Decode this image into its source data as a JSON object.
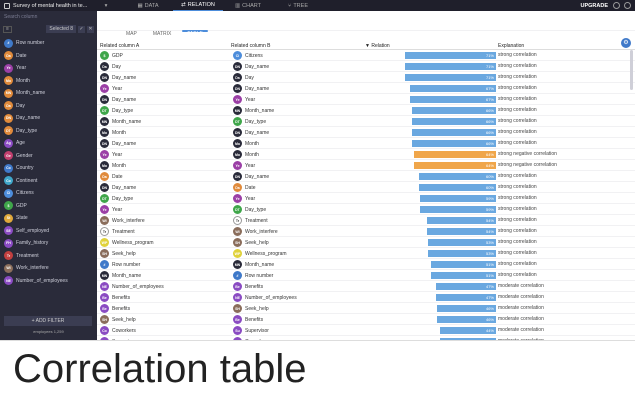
{
  "topbar": {
    "title": "Survey of mental health in te...",
    "tabs": [
      {
        "label": "DATA",
        "icon": "grid-icon"
      },
      {
        "label": "RELATION",
        "icon": "relation-icon"
      },
      {
        "label": "CHART",
        "icon": "chart-icon"
      },
      {
        "label": "TREE",
        "icon": "tree-icon"
      }
    ],
    "active_tab": 1,
    "upgrade": "UPGRADE",
    "menu_icon": "▾"
  },
  "sidebar": {
    "search_placeholder": "Search column",
    "selected": "Selected",
    "selected_count": "8",
    "variables": [
      {
        "label": "Row number",
        "abbr": "#",
        "color": "#3f79c9"
      },
      {
        "label": "Date",
        "abbr": "Da",
        "color": "#e08a3b"
      },
      {
        "label": "Year",
        "abbr": "Ye",
        "color": "#9b3fa6"
      },
      {
        "label": "Month",
        "abbr": "Mo",
        "color": "#e08a3b"
      },
      {
        "label": "Month_name",
        "abbr": "MN",
        "color": "#e08a3b"
      },
      {
        "label": "Day",
        "abbr": "Da",
        "color": "#e08a3b"
      },
      {
        "label": "Day_name",
        "abbr": "DN",
        "color": "#e08a3b"
      },
      {
        "label": "Day_type",
        "abbr": "DT",
        "color": "#e08a3b"
      },
      {
        "label": "Age",
        "abbr": "Ag",
        "color": "#8a4bc2"
      },
      {
        "label": "Gender",
        "abbr": "Ge",
        "color": "#c23f6e"
      },
      {
        "label": "Country",
        "abbr": "Co",
        "color": "#3f79c9"
      },
      {
        "label": "Continent",
        "abbr": "Co",
        "color": "#3fa6c9"
      },
      {
        "label": "Citizens",
        "abbr": "Ci",
        "color": "#4d8ddb"
      },
      {
        "label": "GDP",
        "abbr": "$",
        "color": "#3fa64a"
      },
      {
        "label": "State",
        "abbr": "St",
        "color": "#e0a83b"
      },
      {
        "label": "Self_employed",
        "abbr": "SE",
        "color": "#8a4bc2"
      },
      {
        "label": "Family_history",
        "abbr": "FH",
        "color": "#8a4bc2"
      },
      {
        "label": "Treatment",
        "abbr": "Tr",
        "color": "#c23f3f"
      },
      {
        "label": "Work_interfere",
        "abbr": "WI",
        "color": "#8a6d5b"
      },
      {
        "label": "Number_of_employees",
        "abbr": "NE",
        "color": "#8a4bc2"
      }
    ],
    "add_filter": "+ ADD FILTER",
    "count_text": "employees 1,259"
  },
  "subtabs": [
    "MAP",
    "MATRIX",
    "TABLE"
  ],
  "active_subtab": 2,
  "table": {
    "headers": [
      "Related column A",
      "Related column B",
      "▼ Relation",
      "Explanation"
    ],
    "rows": [
      {
        "a": "GDP",
        "aa": "$",
        "ac": "#3fa64a",
        "b": "Citizens",
        "ba": "Ci",
        "bc": "#4d8ddb",
        "value": 0.71,
        "label": "71%",
        "neg": false,
        "expl": "strong correlation"
      },
      {
        "a": "Day",
        "aa": "Da",
        "ac": "#2a2b3a",
        "b": "Day_name",
        "ba": "DN",
        "bc": "#2a2b3a",
        "value": 0.71,
        "label": "71%",
        "neg": false,
        "expl": "strong correlation"
      },
      {
        "a": "Day_name",
        "aa": "DN",
        "ac": "#2a2b3a",
        "b": "Day",
        "ba": "Da",
        "bc": "#2a2b3a",
        "value": 0.71,
        "label": "71%",
        "neg": false,
        "expl": "strong correlation"
      },
      {
        "a": "Year",
        "aa": "Ye",
        "ac": "#9b3fa6",
        "b": "Day_name",
        "ba": "DN",
        "bc": "#2a2b3a",
        "value": 0.67,
        "label": "67%",
        "neg": false,
        "expl": "strong correlation"
      },
      {
        "a": "Day_name",
        "aa": "DN",
        "ac": "#2a2b3a",
        "b": "Year",
        "ba": "Ye",
        "bc": "#9b3fa6",
        "value": 0.67,
        "label": "67%",
        "neg": false,
        "expl": "strong correlation"
      },
      {
        "a": "Day_type",
        "aa": "DT",
        "ac": "#3fa64a",
        "b": "Month_name",
        "ba": "MN",
        "bc": "#2a2b3a",
        "value": 0.66,
        "label": "66%",
        "neg": false,
        "expl": "strong correlation"
      },
      {
        "a": "Month_name",
        "aa": "MN",
        "ac": "#2a2b3a",
        "b": "Day_type",
        "ba": "DT",
        "bc": "#3fa64a",
        "value": 0.66,
        "label": "66%",
        "neg": false,
        "expl": "strong correlation"
      },
      {
        "a": "Month",
        "aa": "Mo",
        "ac": "#2a2b3a",
        "b": "Day_name",
        "ba": "DN",
        "bc": "#2a2b3a",
        "value": 0.66,
        "label": "66%",
        "neg": false,
        "expl": "strong correlation"
      },
      {
        "a": "Day_name",
        "aa": "DN",
        "ac": "#2a2b3a",
        "b": "Month",
        "ba": "Mo",
        "bc": "#2a2b3a",
        "value": 0.66,
        "label": "66%",
        "neg": false,
        "expl": "strong correlation"
      },
      {
        "a": "Year",
        "aa": "Ye",
        "ac": "#9b3fa6",
        "b": "Month",
        "ba": "Mo",
        "bc": "#2a2b3a",
        "value": 0.64,
        "label": "64%",
        "neg": true,
        "expl": "strong negative correlation"
      },
      {
        "a": "Month",
        "aa": "Mo",
        "ac": "#2a2b3a",
        "b": "Year",
        "ba": "Ye",
        "bc": "#9b3fa6",
        "value": 0.64,
        "label": "64%",
        "neg": true,
        "expl": "strong negative correlation"
      },
      {
        "a": "Date",
        "aa": "Da",
        "ac": "#e08a3b",
        "b": "Day_name",
        "ba": "DN",
        "bc": "#2a2b3a",
        "value": 0.6,
        "label": "60%",
        "neg": false,
        "expl": "strong correlation"
      },
      {
        "a": "Day_name",
        "aa": "DN",
        "ac": "#2a2b3a",
        "b": "Date",
        "ba": "Da",
        "bc": "#e08a3b",
        "value": 0.6,
        "label": "60%",
        "neg": false,
        "expl": "strong correlation"
      },
      {
        "a": "Day_type",
        "aa": "DT",
        "ac": "#3fa64a",
        "b": "Year",
        "ba": "Ye",
        "bc": "#9b3fa6",
        "value": 0.59,
        "label": "59%",
        "neg": false,
        "expl": "strong correlation"
      },
      {
        "a": "Year",
        "aa": "Ye",
        "ac": "#9b3fa6",
        "b": "Day_type",
        "ba": "DT",
        "bc": "#3fa64a",
        "value": 0.59,
        "label": "59%",
        "neg": false,
        "expl": "strong correlation"
      },
      {
        "a": "Work_interfere",
        "aa": "WI",
        "ac": "#8a6d5b",
        "b": "Treatment",
        "ba": "Tr",
        "bc": "#ffffff",
        "value": 0.54,
        "label": "54%",
        "neg": false,
        "expl": "strong correlation"
      },
      {
        "a": "Treatment",
        "aa": "Tr",
        "ac": "#ffffff",
        "b": "Work_interfere",
        "ba": "WI",
        "bc": "#8a6d5b",
        "value": 0.54,
        "label": "54%",
        "neg": false,
        "expl": "strong correlation"
      },
      {
        "a": "Wellness_program",
        "aa": "WP",
        "ac": "#e0d23b",
        "b": "Seek_help",
        "ba": "SH",
        "bc": "#8a6d5b",
        "value": 0.53,
        "label": "53%",
        "neg": false,
        "expl": "strong correlation"
      },
      {
        "a": "Seek_help",
        "aa": "SH",
        "ac": "#8a6d5b",
        "b": "Wellness_program",
        "ba": "WP",
        "bc": "#e0d23b",
        "value": 0.53,
        "label": "53%",
        "neg": false,
        "expl": "strong correlation"
      },
      {
        "a": "Row number",
        "aa": "#",
        "ac": "#3f79c9",
        "b": "Month_name",
        "ba": "MN",
        "bc": "#2a2b3a",
        "value": 0.51,
        "label": "51%",
        "neg": false,
        "expl": "strong correlation"
      },
      {
        "a": "Month_name",
        "aa": "MN",
        "ac": "#2a2b3a",
        "b": "Row number",
        "ba": "#",
        "bc": "#3f79c9",
        "value": 0.51,
        "label": "51%",
        "neg": false,
        "expl": "strong correlation"
      },
      {
        "a": "Number_of_employees",
        "aa": "NE",
        "ac": "#8a4bc2",
        "b": "Benefits",
        "ba": "Be",
        "bc": "#8a4bc2",
        "value": 0.47,
        "label": "47%",
        "neg": false,
        "expl": "moderate correlation"
      },
      {
        "a": "Benefits",
        "aa": "Be",
        "ac": "#8a4bc2",
        "b": "Number_of_employees",
        "ba": "NE",
        "bc": "#8a4bc2",
        "value": 0.47,
        "label": "47%",
        "neg": false,
        "expl": "moderate correlation"
      },
      {
        "a": "Benefits",
        "aa": "Be",
        "ac": "#8a4bc2",
        "b": "Seek_help",
        "ba": "SH",
        "bc": "#8a6d5b",
        "value": 0.46,
        "label": "46%",
        "neg": false,
        "expl": "moderate correlation"
      },
      {
        "a": "Seek_help",
        "aa": "SH",
        "ac": "#8a6d5b",
        "b": "Benefits",
        "ba": "Be",
        "bc": "#8a4bc2",
        "value": 0.46,
        "label": "46%",
        "neg": false,
        "expl": "moderate correlation"
      },
      {
        "a": "Coworkers",
        "aa": "Co",
        "ac": "#8a4bc2",
        "b": "Supervisor",
        "ba": "Su",
        "bc": "#8a4bc2",
        "value": 0.44,
        "label": "44%",
        "neg": false,
        "expl": "moderate correlation"
      },
      {
        "a": "Supervisor",
        "aa": "Su",
        "ac": "#8a4bc2",
        "b": "Coworkers",
        "ba": "Co",
        "bc": "#8a4bc2",
        "value": 0.44,
        "label": "44%",
        "neg": false,
        "expl": "moderate correlation"
      }
    ]
  },
  "caption": "Correlation table",
  "colors": {
    "positive": "#6aa8e0",
    "negative": "#f0a64a"
  }
}
